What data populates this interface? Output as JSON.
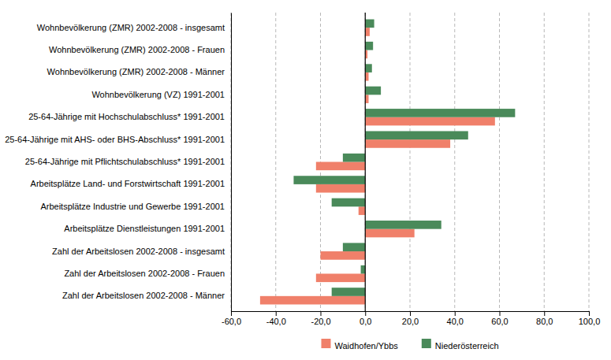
{
  "chart_data": {
    "type": "bar",
    "orientation": "horizontal",
    "categories": [
      "Wohnbevölkerung (ZMR) 2002-2008 - insgesamt",
      "Wohnbevölkerung (ZMR) 2002-2008 - Frauen",
      "Wohnbevölkerung (ZMR) 2002-2008 - Männer",
      "Wohnbevölkerung (VZ) 1991-2001",
      "25-64-Jährige mit Hochschulabschluss* 1991-2001",
      "25-64-Jährige mit AHS- oder BHS-Abschluss* 1991-2001",
      "25-64-Jährige mit Pflichtschulabschluss* 1991-2001",
      "Arbeitsplätze Land- und Forstwirtschaft 1991-2001",
      "Arbeitsplätze Industrie und Gewerbe 1991-2001",
      "Arbeitsplätze Dienstleistungen 1991-2001",
      "Zahl der Arbeitslosen 2002-2008 - insgesamt",
      "Zahl der Arbeitslosen 2002-2008 - Frauen",
      "Zahl der Arbeitslosen 2002-2008 - Männer"
    ],
    "series": [
      {
        "name": "Waidhofen/Ybbs",
        "color": "#f0806a",
        "values": [
          2.0,
          1.0,
          1.5,
          1.5,
          58.0,
          38.0,
          -22.0,
          -22.0,
          -3.0,
          22.0,
          -20.0,
          -22.0,
          -47.0
        ]
      },
      {
        "name": "Niederösterreich",
        "color": "#4a8a5a",
        "values": [
          4.0,
          3.5,
          3.0,
          7.0,
          67.0,
          46.0,
          -10.0,
          -32.0,
          -15.0,
          34.0,
          -10.0,
          -2.0,
          -15.0
        ]
      }
    ],
    "xlim": [
      -60,
      100
    ],
    "xticks": [
      {
        "value": -60,
        "label": "-60,0"
      },
      {
        "value": -40,
        "label": "-40,0"
      },
      {
        "value": -20,
        "label": "-20,0"
      },
      {
        "value": 0,
        "label": "0,0"
      },
      {
        "value": 20,
        "label": "20,0"
      },
      {
        "value": 40,
        "label": "40,0"
      },
      {
        "value": 60,
        "label": "60,0"
      },
      {
        "value": 80,
        "label": "80,0"
      },
      {
        "value": 100,
        "label": "100,0"
      }
    ],
    "grid": true,
    "legend": "bottom"
  }
}
